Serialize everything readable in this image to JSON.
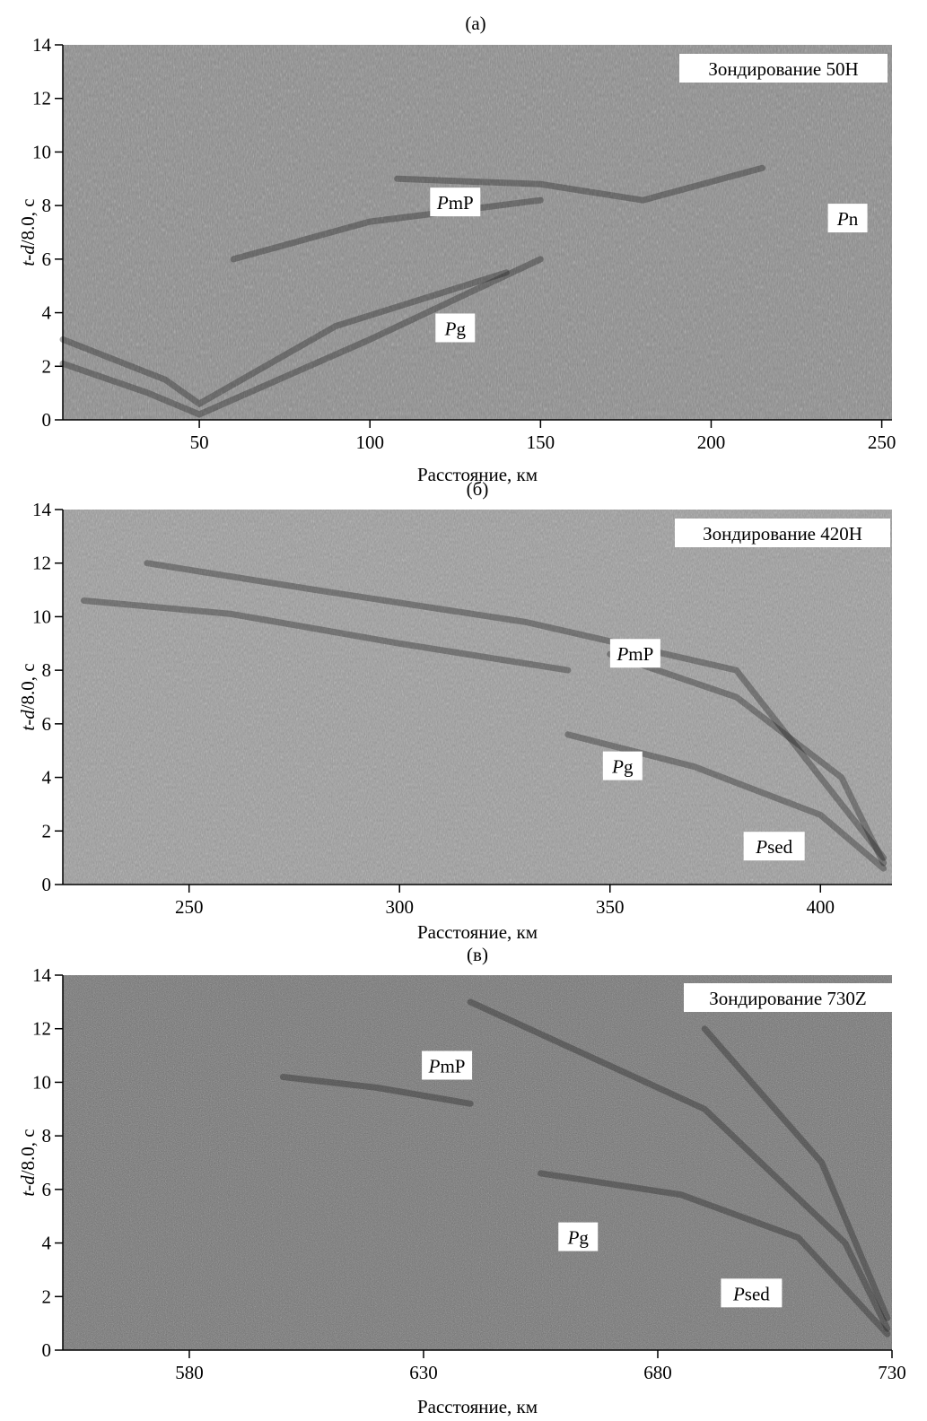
{
  "chart_data": [
    {
      "type": "heatmap",
      "panel_label": "(а)",
      "station_label": "Зондирование 50Н",
      "xlabel": "Расстояние, км",
      "ylabel": {
        "italic1": "t",
        "sep1": "-",
        "italic2": "d",
        "rest": "/8.0, с"
      },
      "xlim": [
        10,
        253
      ],
      "ylim": [
        0,
        14
      ],
      "xticks": [
        50,
        100,
        150,
        200,
        250
      ],
      "yticks": [
        0,
        2,
        4,
        6,
        8,
        10,
        12,
        14
      ],
      "annotations": [
        {
          "italic": "P",
          "rest": "mP",
          "x": 125,
          "y": 8.1
        },
        {
          "italic": "P",
          "rest": "g",
          "x": 125,
          "y": 3.4
        },
        {
          "italic": "P",
          "rest": "n",
          "x": 240,
          "y": 7.5
        }
      ]
    },
    {
      "type": "heatmap",
      "panel_label": "(б)",
      "station_label": "Зондирование 420Н",
      "xlabel": "Расстояние, км",
      "ylabel": {
        "italic1": "t",
        "sep1": "-",
        "italic2": "d",
        "rest": "/8.0, с"
      },
      "xlim": [
        220,
        417
      ],
      "ylim": [
        0,
        14
      ],
      "xticks": [
        250,
        300,
        350,
        400
      ],
      "yticks": [
        0,
        2,
        4,
        6,
        8,
        10,
        12,
        14
      ],
      "annotations": [
        {
          "italic": "P",
          "rest": "mP",
          "x": 356,
          "y": 8.6
        },
        {
          "italic": "P",
          "rest": "g",
          "x": 353,
          "y": 4.4
        },
        {
          "italic": "P",
          "rest": "sed",
          "x": 389,
          "y": 1.4
        }
      ]
    },
    {
      "type": "heatmap",
      "panel_label": "(в)",
      "station_label": "Зондирование 730Z",
      "xlabel": "Расстояние, км",
      "ylabel": {
        "italic1": "t",
        "sep1": "-",
        "italic2": "d",
        "rest": "/8.0, с"
      },
      "xlim": [
        553,
        730
      ],
      "ylim": [
        0,
        14
      ],
      "xticks": [
        580,
        630,
        680,
        730
      ],
      "yticks": [
        0,
        2,
        4,
        6,
        8,
        10,
        12,
        14
      ],
      "annotations": [
        {
          "italic": "P",
          "rest": "mP",
          "x": 635,
          "y": 10.6
        },
        {
          "italic": "P",
          "rest": "g",
          "x": 663,
          "y": 4.2
        },
        {
          "italic": "P",
          "rest": "sed",
          "x": 700,
          "y": 2.1
        }
      ]
    }
  ]
}
